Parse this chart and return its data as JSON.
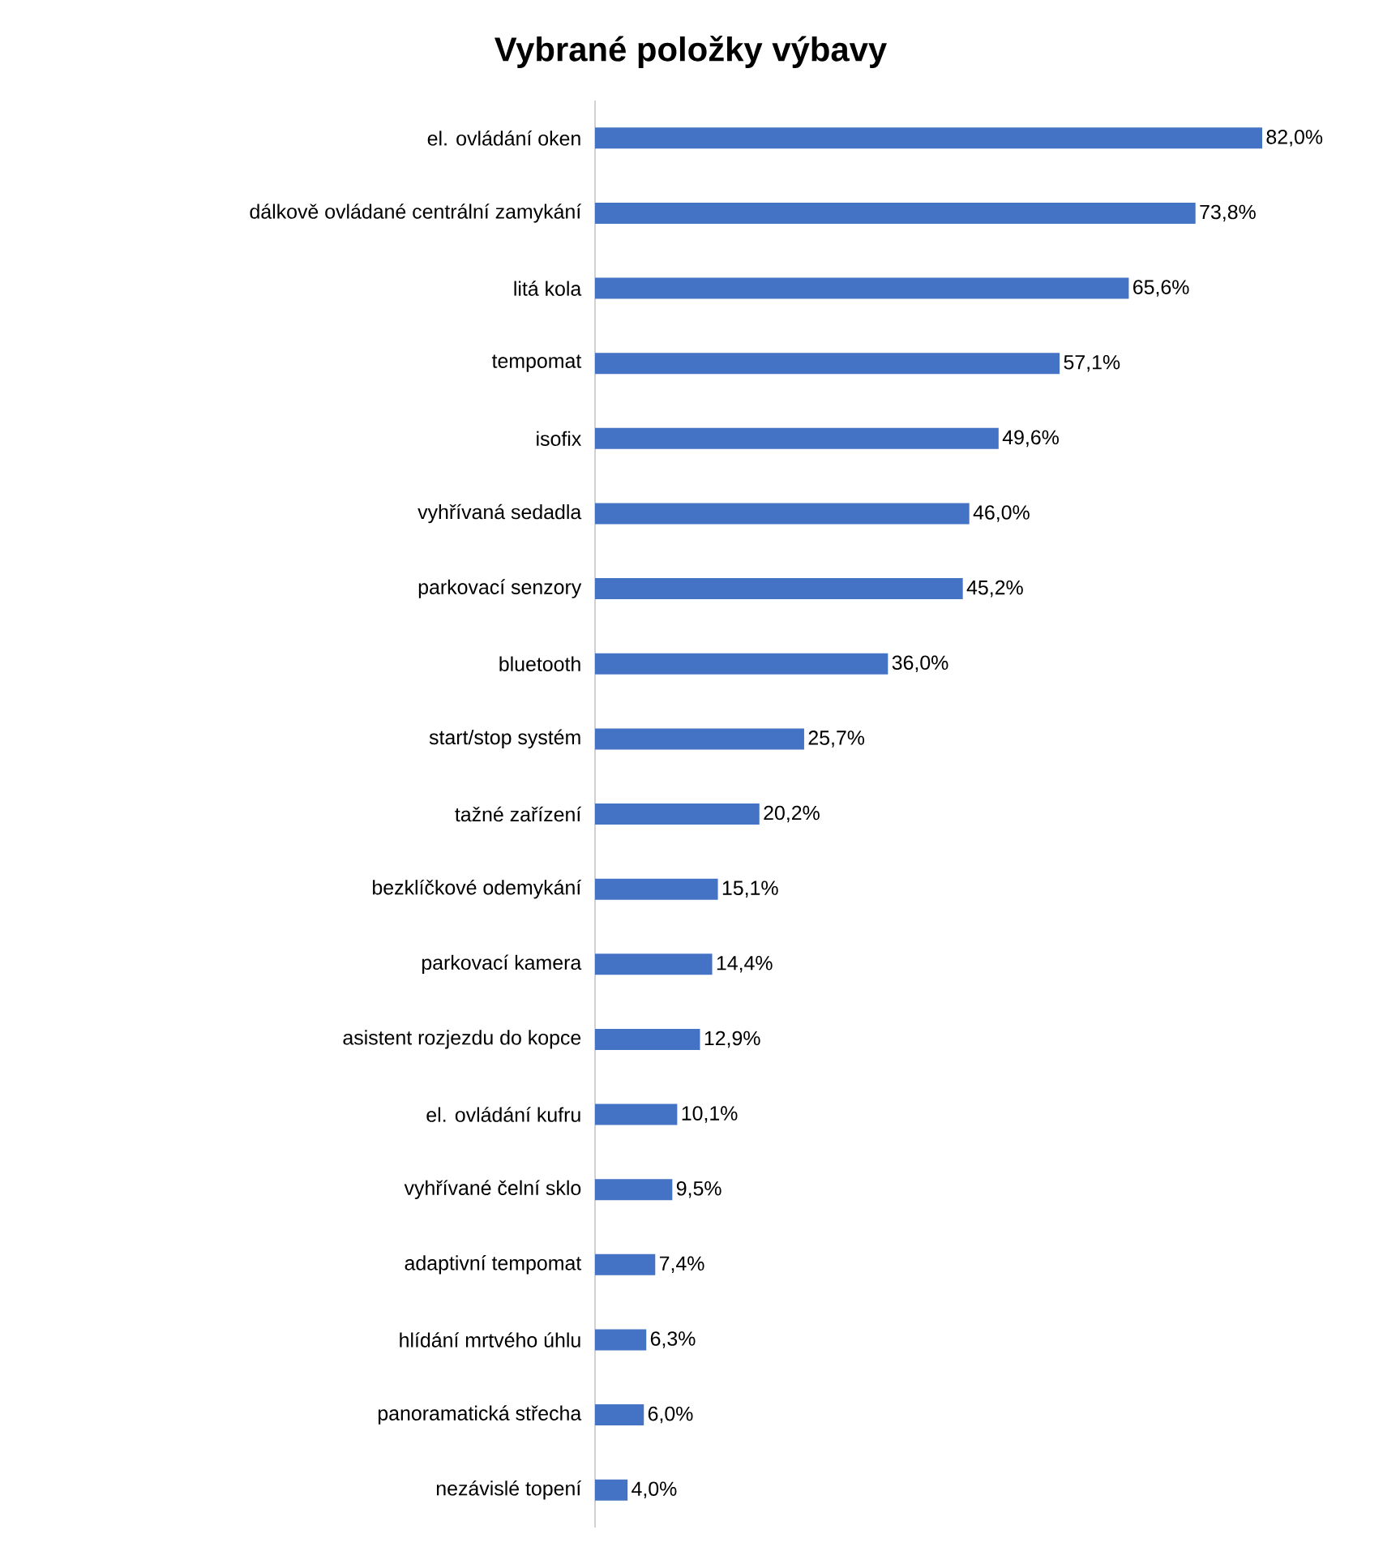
{
  "chart_data": {
    "type": "bar",
    "orientation": "horizontal",
    "title": "Vybrané položky výbavy",
    "color": "#4472c4",
    "categories": [
      "el. ovládání oken",
      "dálkově ovládané centrální zamykání",
      "litá kola",
      "tempomat",
      "isofix",
      "vyhřívaná sedadla",
      "parkovací senzory",
      "bluetooth",
      "start/stop systém",
      "tažné zařízení",
      "bezklíčkové odemykání",
      "parkovací kamera",
      "asistent rozjezdu do kopce",
      "el. ovládání kufru",
      "vyhřívané čelní sklo",
      "adaptivní tempomat",
      "hlídání mrtvého úhlu",
      "panoramatická střecha",
      "nezávislé topení"
    ],
    "values": [
      82.0,
      73.8,
      65.6,
      57.1,
      49.6,
      46.0,
      45.2,
      36.0,
      25.7,
      20.2,
      15.1,
      14.4,
      12.9,
      10.1,
      9.5,
      7.4,
      6.3,
      6.0,
      4.0
    ],
    "value_labels": [
      "82,0%",
      "73,8%",
      "65,6%",
      "57,1%",
      "49,6%",
      "46,0%",
      "45,2%",
      "36,0%",
      "25,7%",
      "20,2%",
      "15,1%",
      "14,4%",
      "12,9%",
      "10,1%",
      "9,5%",
      "7,4%",
      "6,3%",
      "6,0%",
      "4,0%"
    ]
  }
}
